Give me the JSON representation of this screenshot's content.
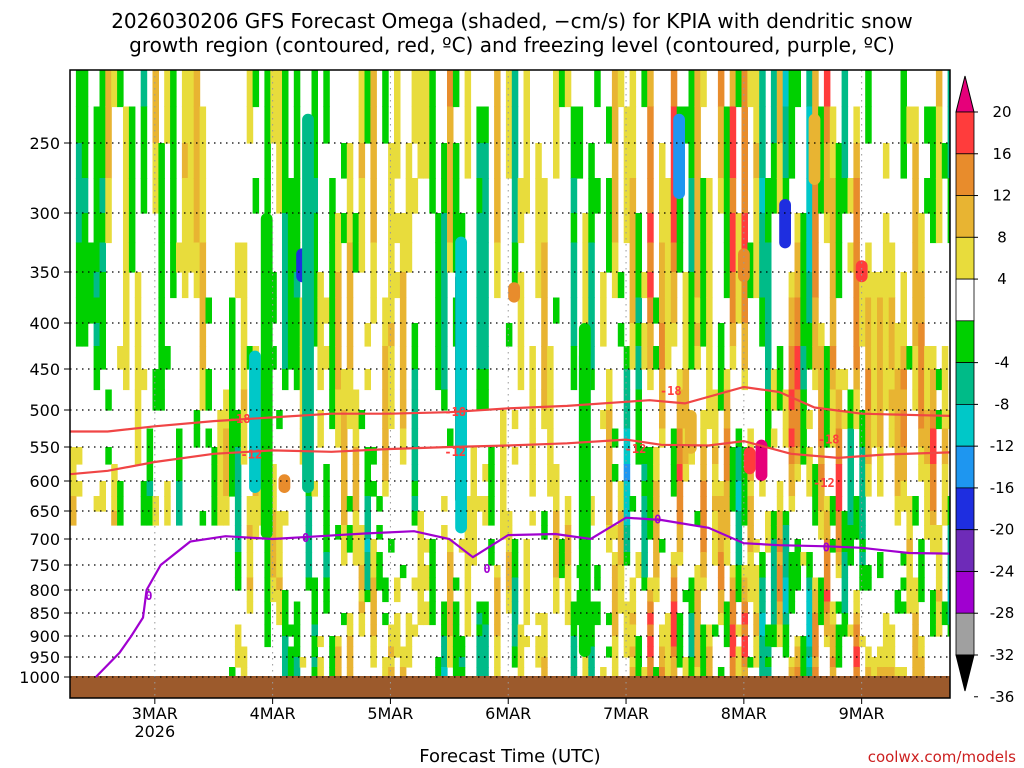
{
  "chart_data": {
    "type": "heatmap",
    "title": "2026030206 GFS Forecast Omega (shaded, −cm/s) for KPIA with dendritic snow growth region (contoured, red, ºC) and freezing level (contoured, purple, ºC)",
    "title_lines": [
      "2026030206 GFS Forecast Omega (shaded, −cm/s) for KPIA with dendritic snow",
      "growth region (contoured, red, ºC) and freezing level (contoured, purple, ºC)"
    ],
    "xlabel": "Forecast Time (UTC)",
    "ylabel": "",
    "credit": "coolwx.com/models",
    "x_range_days": [
      2.28,
      9.75
    ],
    "y_range_hpa": [
      1000,
      200
    ],
    "x_ticks": [
      {
        "day": 3,
        "label": "3MAR",
        "sublabel": "2026"
      },
      {
        "day": 4,
        "label": "4MAR",
        "sublabel": ""
      },
      {
        "day": 5,
        "label": "5MAR",
        "sublabel": ""
      },
      {
        "day": 6,
        "label": "6MAR",
        "sublabel": ""
      },
      {
        "day": 7,
        "label": "7MAR",
        "sublabel": ""
      },
      {
        "day": 8,
        "label": "8MAR",
        "sublabel": ""
      },
      {
        "day": 9,
        "label": "9MAR",
        "sublabel": ""
      }
    ],
    "y_ticks": [
      {
        "p": 250,
        "label": "250"
      },
      {
        "p": 300,
        "label": "300"
      },
      {
        "p": 350,
        "label": "350"
      },
      {
        "p": 400,
        "label": "400"
      },
      {
        "p": 450,
        "label": "450"
      },
      {
        "p": 500,
        "label": "500"
      },
      {
        "p": 550,
        "label": "550"
      },
      {
        "p": 600,
        "label": "600"
      },
      {
        "p": 650,
        "label": "650"
      },
      {
        "p": 700,
        "label": "700"
      },
      {
        "p": 750,
        "label": "750"
      },
      {
        "p": 800,
        "label": "800"
      },
      {
        "p": 850,
        "label": "850"
      },
      {
        "p": 900,
        "label": "900"
      },
      {
        "p": 950,
        "label": "950"
      },
      {
        "p": 1000,
        "label": "1000"
      }
    ],
    "colorbar": {
      "levels": [
        -36,
        -32,
        -28,
        -24,
        -20,
        -16,
        -12,
        -8,
        -4,
        4,
        8,
        12,
        16,
        20
      ],
      "labels": [
        "20",
        "16",
        "12",
        "8",
        "4",
        "-4",
        "-8",
        "-12",
        "-16",
        "-20",
        "-24",
        "-28",
        "-32",
        "-36"
      ],
      "colors": [
        "#000000",
        "#a0a0a0",
        "#a000d0",
        "#6e2bb8",
        "#1e2ee0",
        "#1e96f0",
        "#00c8c8",
        "#00bb88",
        "#00d000",
        "#ffffff",
        "#e8dc3c",
        "#e8b432",
        "#e88c2c",
        "#ff3c3c",
        "#e6007a"
      ]
    },
    "shading": [
      {
        "day": 3.85,
        "p0": 430,
        "p1": 620,
        "val": -14
      },
      {
        "day": 3.95,
        "p0": 300,
        "p1": 700,
        "val": -8
      },
      {
        "day": 4.25,
        "p0": 330,
        "p1": 360,
        "val": -22
      },
      {
        "day": 4.3,
        "p0": 230,
        "p1": 620,
        "val": -12
      },
      {
        "day": 5.6,
        "p0": 350,
        "p1": 640,
        "val": -38
      },
      {
        "day": 5.6,
        "p0": 320,
        "p1": 690,
        "val": -14
      },
      {
        "day": 6.65,
        "p0": 430,
        "p1": 730,
        "val": -20
      },
      {
        "day": 6.65,
        "p0": 400,
        "p1": 950,
        "val": -8
      },
      {
        "day": 7.45,
        "p0": 230,
        "p1": 290,
        "val": -18
      },
      {
        "day": 8.35,
        "p0": 290,
        "p1": 330,
        "val": -24
      },
      {
        "day": 7.55,
        "p0": 500,
        "p1": 560,
        "val": 10
      },
      {
        "day": 8.05,
        "p0": 550,
        "p1": 590,
        "val": 17
      },
      {
        "day": 8.15,
        "p0": 540,
        "p1": 600,
        "val": 20
      },
      {
        "day": 8.0,
        "p0": 330,
        "p1": 360,
        "val": 13
      },
      {
        "day": 9.0,
        "p0": 340,
        "p1": 360,
        "val": 17
      },
      {
        "day": 8.6,
        "p0": 230,
        "p1": 280,
        "val": 8
      },
      {
        "day": 4.1,
        "p0": 590,
        "p1": 620,
        "val": 14
      },
      {
        "day": 6.05,
        "p0": 360,
        "p1": 380,
        "val": 12
      }
    ],
    "snow_growth_contours": [
      {
        "label": "-18",
        "points": [
          [
            2.28,
            529
          ],
          [
            2.6,
            529
          ],
          [
            3.0,
            522
          ],
          [
            3.5,
            515
          ],
          [
            4.0,
            510
          ],
          [
            4.5,
            505
          ],
          [
            5.0,
            505
          ],
          [
            5.5,
            503
          ],
          [
            6.0,
            498
          ],
          [
            6.5,
            495
          ],
          [
            7.0,
            490
          ],
          [
            7.2,
            488
          ],
          [
            7.5,
            492
          ],
          [
            8.0,
            472
          ],
          [
            8.3,
            478
          ],
          [
            8.6,
            497
          ],
          [
            9.0,
            505
          ],
          [
            9.5,
            507
          ],
          [
            9.75,
            508
          ]
        ]
      },
      {
        "label": "-12",
        "points": [
          [
            2.28,
            590
          ],
          [
            2.6,
            585
          ],
          [
            3.0,
            572
          ],
          [
            3.5,
            560
          ],
          [
            4.0,
            555
          ],
          [
            4.5,
            557
          ],
          [
            5.0,
            553
          ],
          [
            5.5,
            550
          ],
          [
            6.0,
            548
          ],
          [
            6.5,
            545
          ],
          [
            7.0,
            540
          ],
          [
            7.3,
            547
          ],
          [
            7.7,
            548
          ],
          [
            8.0,
            542
          ],
          [
            8.4,
            560
          ],
          [
            8.8,
            566
          ],
          [
            9.2,
            561
          ],
          [
            9.75,
            558
          ]
        ]
      }
    ],
    "freezing_level": {
      "label": "0",
      "points": [
        [
          2.5,
          1000
        ],
        [
          2.7,
          940
        ],
        [
          2.8,
          900
        ],
        [
          2.9,
          860
        ],
        [
          2.93,
          800
        ],
        [
          3.05,
          750
        ],
        [
          3.3,
          705
        ],
        [
          3.6,
          695
        ],
        [
          4.0,
          700
        ],
        [
          4.4,
          695
        ],
        [
          4.8,
          690
        ],
        [
          5.2,
          686
        ],
        [
          5.5,
          700
        ],
        [
          5.7,
          735
        ],
        [
          6.0,
          693
        ],
        [
          6.4,
          691
        ],
        [
          6.7,
          700
        ],
        [
          7.0,
          662
        ],
        [
          7.3,
          666
        ],
        [
          7.7,
          680
        ],
        [
          8.0,
          708
        ],
        [
          8.3,
          712
        ],
        [
          8.7,
          714
        ],
        [
          9.0,
          717
        ],
        [
          9.4,
          727
        ],
        [
          9.75,
          728
        ]
      ]
    },
    "contour_labels": [
      {
        "text": "-18",
        "day": 3.72,
        "p": 512,
        "color": "#ff3c3c"
      },
      {
        "text": "-18",
        "day": 5.55,
        "p": 503,
        "color": "#ff3c3c"
      },
      {
        "text": "-18",
        "day": 7.38,
        "p": 477,
        "color": "#ff3c3c"
      },
      {
        "text": "-18",
        "day": 8.72,
        "p": 540,
        "color": "#ff3c3c"
      },
      {
        "text": "-12",
        "day": 3.82,
        "p": 561,
        "color": "#ff3c3c"
      },
      {
        "text": "-12",
        "day": 5.55,
        "p": 557,
        "color": "#ff3c3c"
      },
      {
        "text": "-12",
        "day": 7.08,
        "p": 553,
        "color": "#ff3c3c"
      },
      {
        "text": "-12",
        "day": 8.68,
        "p": 603,
        "color": "#ff3c3c"
      },
      {
        "text": "0",
        "day": 2.95,
        "p": 813,
        "color": "#a000d0"
      },
      {
        "text": "0",
        "day": 4.28,
        "p": 698,
        "color": "#a000d0"
      },
      {
        "text": "0",
        "day": 5.82,
        "p": 758,
        "color": "#a000d0"
      },
      {
        "text": "0",
        "day": 7.27,
        "p": 665,
        "color": "#a000d0"
      },
      {
        "text": "0",
        "day": 8.7,
        "p": 716,
        "color": "#a000d0"
      }
    ]
  }
}
